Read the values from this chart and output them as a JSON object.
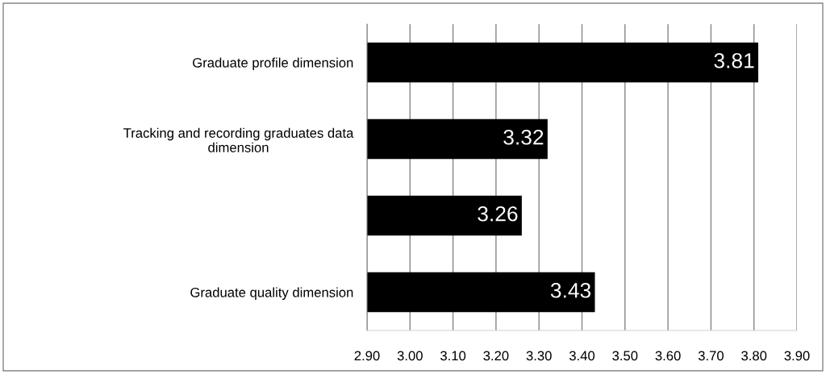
{
  "chart_data": {
    "type": "bar",
    "orientation": "horizontal",
    "categories": [
      "Graduate profile dimension",
      "Tracking and recording graduates data\ndimension",
      null,
      "Graduate quality dimension"
    ],
    "values": [
      3.81,
      3.32,
      3.26,
      3.43
    ],
    "color": "#000000",
    "xlim": [
      2.9,
      3.9
    ],
    "xticks": [
      {
        "value": 2.9,
        "label": "2.90"
      },
      {
        "value": 3.0,
        "label": "3.00"
      },
      {
        "value": 3.1,
        "label": "3.10"
      },
      {
        "value": 3.2,
        "label": "3.20"
      },
      {
        "value": 3.3,
        "label": "3.30"
      },
      {
        "value": 3.4,
        "label": "3.40"
      },
      {
        "value": 3.5,
        "label": "3.50"
      },
      {
        "value": 3.6,
        "label": "3.60"
      },
      {
        "value": 3.7,
        "label": "3.70"
      },
      {
        "value": 3.8,
        "label": "3.80"
      },
      {
        "value": 3.9,
        "label": "3.90"
      }
    ],
    "grid": "x",
    "data_labels": true
  }
}
